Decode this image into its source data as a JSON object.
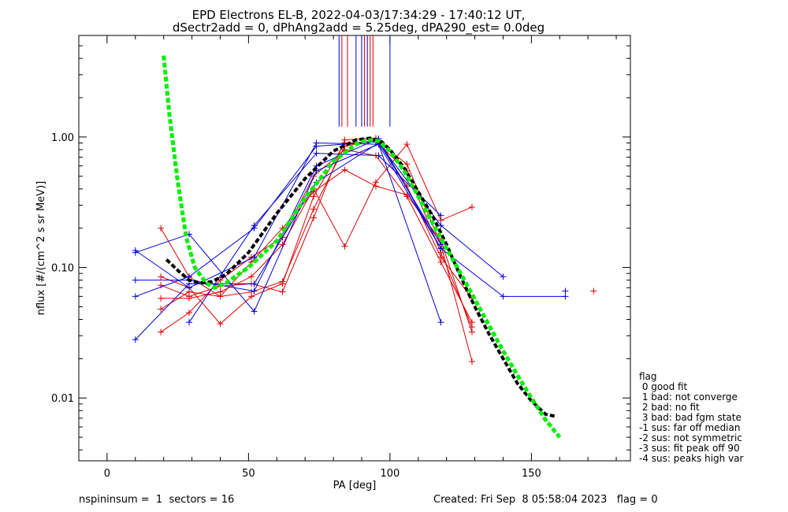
{
  "chart_data": {
    "type": "line",
    "title": "EPD Electrons EL-B, 2022-04-03/17:34:29 - 17:40:12 UT,",
    "subtitle": "dSectr2add = 0, dPhAng2add = 5.25deg, dPA290_est=    0.0deg",
    "xlabel": "PA [deg]",
    "ylabel": "nflux [#/(cm^2 s sr MeV)]",
    "xlim": [
      -10,
      185
    ],
    "ylim": [
      0.0033,
      6.0
    ],
    "yscale": "log",
    "x_ticks": [
      0,
      50,
      100,
      150
    ],
    "x_tick_labels": [
      "0",
      "50",
      "100",
      "150"
    ],
    "y_ticks": [
      0.01,
      0.1,
      1.0
    ],
    "y_tick_labels": [
      "0.01",
      "0.10",
      "1.00"
    ],
    "grid": false,
    "colors": {
      "red": "#dd0000",
      "blue": "#0000dd",
      "fit_green": "#00ee00",
      "fit_black": "#000000"
    },
    "peak_marker_lines": {
      "y_range": [
        1.2,
        6.0
      ],
      "red_x": [
        83,
        85,
        91,
        93,
        94
      ],
      "blue_x": [
        82,
        88,
        90,
        92,
        100
      ]
    },
    "red_series": [
      {
        "x": [
          19,
          29,
          40,
          51,
          62,
          73,
          84,
          95,
          106,
          118,
          129
        ],
        "y": [
          0.2,
          0.085,
          0.06,
          0.065,
          0.078,
          0.28,
          0.85,
          0.95,
          0.62,
          0.15,
          0.019
        ]
      },
      {
        "x": [
          19,
          29,
          40,
          51,
          62,
          73,
          84,
          95,
          106,
          118,
          129
        ],
        "y": [
          0.085,
          0.07,
          0.037,
          0.06,
          0.075,
          0.35,
          0.9,
          0.92,
          0.55,
          0.13,
          0.035
        ]
      },
      {
        "x": [
          19,
          29,
          40,
          51,
          62,
          73,
          84,
          95,
          106,
          118,
          129
        ],
        "y": [
          0.073,
          0.06,
          0.072,
          0.075,
          0.065,
          0.24,
          0.95,
          0.98,
          0.42,
          0.12,
          0.058
        ]
      },
      {
        "x": [
          19,
          29,
          40,
          51,
          62,
          73,
          84,
          95,
          106,
          118,
          129
        ],
        "y": [
          0.058,
          0.058,
          0.065,
          0.085,
          0.15,
          0.4,
          0.145,
          0.45,
          0.88,
          0.23,
          0.29
        ]
      },
      {
        "x": [
          19,
          29,
          40,
          51,
          62,
          73,
          84,
          95,
          106,
          118,
          129
        ],
        "y": [
          0.048,
          0.065,
          0.06,
          0.11,
          0.2,
          0.38,
          0.56,
          0.42,
          0.36,
          0.16,
          0.032
        ]
      },
      {
        "x": [
          19,
          29,
          40,
          51,
          62,
          73,
          84,
          95,
          106,
          118,
          129
        ],
        "y": [
          0.032,
          0.045,
          0.08,
          0.12,
          0.17,
          0.5,
          0.8,
          0.72,
          0.35,
          0.11,
          0.038
        ]
      }
    ],
    "red_isolated": [
      {
        "x": 172,
        "y": 0.066
      }
    ],
    "blue_series": [
      {
        "x": [
          10,
          29,
          52,
          74,
          96,
          118
        ],
        "y": [
          0.13,
          0.18,
          0.046,
          0.55,
          0.88,
          0.038
        ]
      },
      {
        "x": [
          10,
          29,
          52,
          74,
          96,
          118
        ],
        "y": [
          0.06,
          0.085,
          0.2,
          0.85,
          0.92,
          0.15
        ]
      },
      {
        "x": [
          10,
          29,
          52,
          74,
          96,
          118,
          140,
          162
        ],
        "y": [
          0.08,
          0.08,
          0.066,
          0.6,
          0.97,
          0.14,
          0.06,
          0.06
        ]
      },
      {
        "x": [
          10,
          29,
          52,
          74,
          96,
          118,
          140
        ],
        "y": [
          0.028,
          0.075,
          0.075,
          0.45,
          0.9,
          0.21,
          0.085
        ]
      },
      {
        "x": [
          10,
          29,
          52,
          74,
          96,
          118
        ],
        "y": [
          0.135,
          0.07,
          0.12,
          0.9,
          0.88,
          0.14
        ]
      },
      {
        "x": [
          29,
          52,
          74,
          96,
          118
        ],
        "y": [
          0.038,
          0.21,
          0.75,
          0.72,
          0.25
        ]
      }
    ],
    "blue_isolated": [
      {
        "x": 162,
        "y": 0.066
      }
    ],
    "fit_green": {
      "x": [
        20,
        22,
        25,
        28,
        31,
        35,
        38,
        42,
        50,
        60,
        70,
        80,
        88,
        92,
        96,
        100,
        105,
        110,
        115,
        120,
        125,
        130,
        135,
        140,
        145,
        150,
        155,
        160
      ],
      "y": [
        4.2,
        1.5,
        0.45,
        0.17,
        0.1,
        0.076,
        0.07,
        0.076,
        0.1,
        0.16,
        0.34,
        0.65,
        0.88,
        0.95,
        0.93,
        0.78,
        0.55,
        0.35,
        0.22,
        0.14,
        0.09,
        0.057,
        0.036,
        0.023,
        0.015,
        0.01,
        0.0068,
        0.005
      ]
    },
    "fit_black": {
      "x": [
        21,
        25,
        29,
        33,
        37,
        42,
        50,
        60,
        70,
        80,
        88,
        93,
        97,
        100,
        105,
        110,
        115,
        120,
        125,
        130,
        135,
        140,
        145,
        150,
        155,
        159
      ],
      "y": [
        0.115,
        0.095,
        0.08,
        0.076,
        0.078,
        0.088,
        0.13,
        0.26,
        0.48,
        0.78,
        0.95,
        0.98,
        0.92,
        0.8,
        0.58,
        0.38,
        0.25,
        0.15,
        0.085,
        0.05,
        0.031,
        0.02,
        0.013,
        0.0095,
        0.0075,
        0.0072
      ]
    }
  },
  "legend": {
    "title": "flag",
    "items": [
      " 0 good fit",
      " 1 bad: not converge",
      " 2 bad: no fit",
      " 3 bad: bad fgm state",
      "-1 sus: far off median",
      "-2 sus: not symmetric",
      "-3 sus: fit peak off 90",
      "-4 sus: peaks high var"
    ]
  },
  "footer": {
    "left": "nspininsum =  1  sectors = 16",
    "right": "Created: Fri Sep  8 05:58:04 2023   flag = 0"
  }
}
